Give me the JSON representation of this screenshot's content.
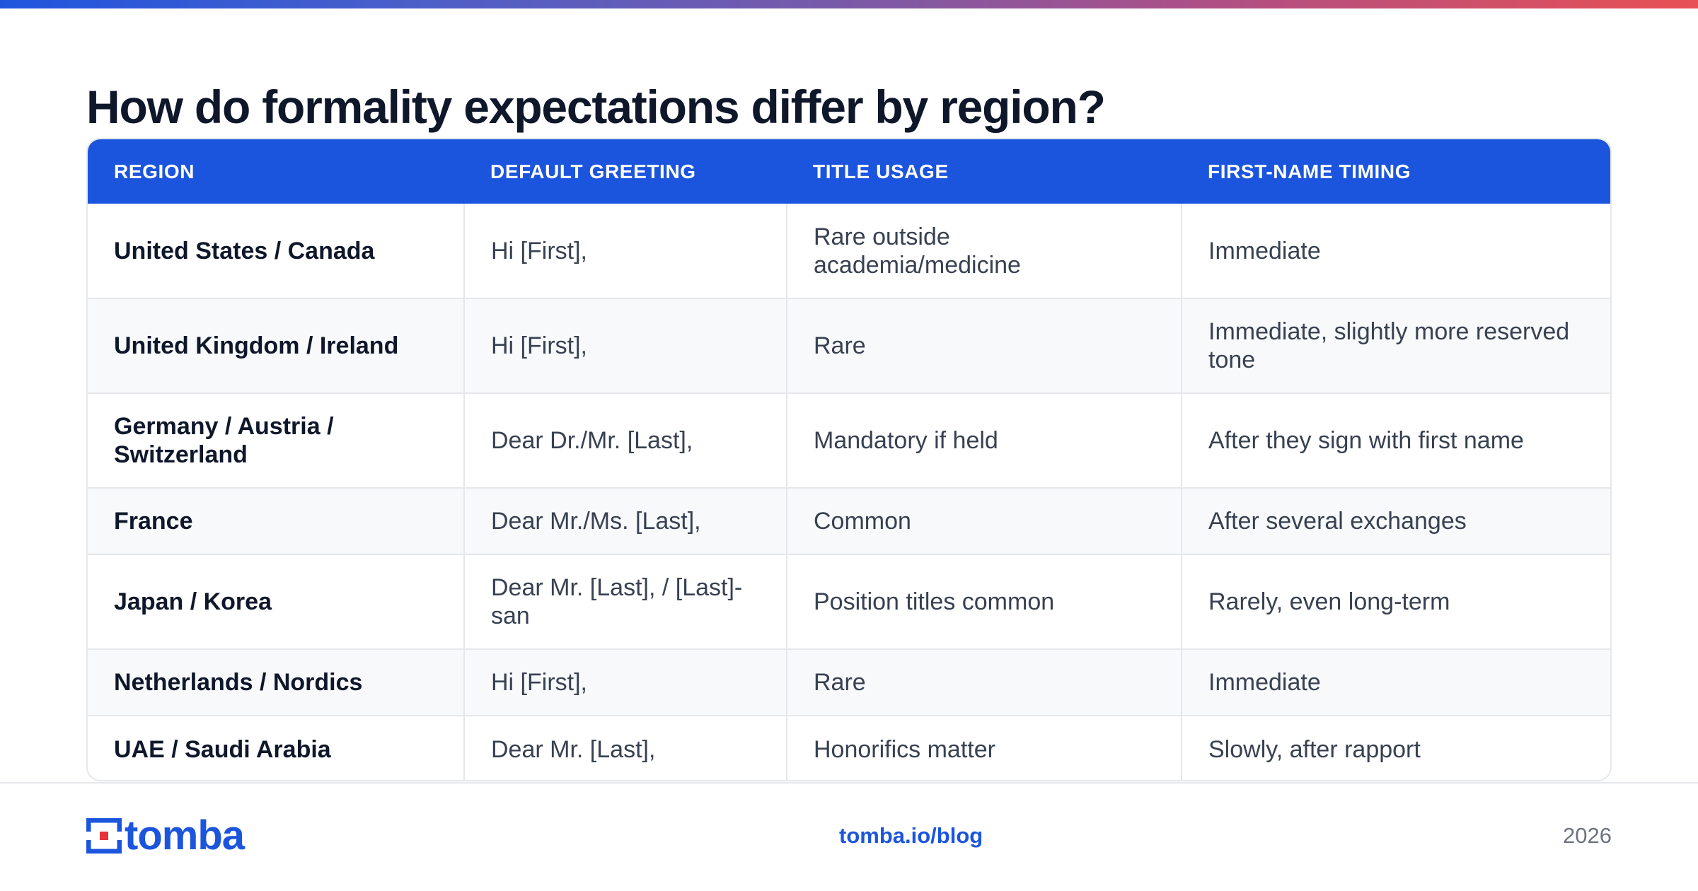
{
  "page": {
    "title": "How do formality expectations differ by region?"
  },
  "table": {
    "headers": [
      "REGION",
      "DEFAULT GREETING",
      "TITLE USAGE",
      "FIRST-NAME TIMING"
    ],
    "rows": [
      [
        "United States / Canada",
        "Hi [First],",
        "Rare outside academia/medicine",
        "Immediate"
      ],
      [
        "United Kingdom / Ireland",
        "Hi [First],",
        "Rare",
        "Immediate, slightly more reserved tone"
      ],
      [
        "Germany / Austria / Switzerland",
        "Dear Dr./Mr. [Last],",
        "Mandatory if held",
        "After they sign with first name"
      ],
      [
        "France",
        "Dear Mr./Ms. [Last],",
        "Common",
        "After several exchanges"
      ],
      [
        "Japan / Korea",
        "Dear Mr. [Last], / [Last]-san",
        "Position titles common",
        "Rarely, even long-term"
      ],
      [
        "Netherlands / Nordics",
        "Hi [First],",
        "Rare",
        "Immediate"
      ],
      [
        "UAE / Saudi Arabia",
        "Dear Mr. [Last],",
        "Honorifics matter",
        "Slowly, after rapport"
      ]
    ]
  },
  "footer": {
    "logo_text": "tomba",
    "logo_icon": "tomba-logo-icon",
    "link": "tomba.io/blog",
    "year": "2026"
  },
  "colors": {
    "accent": "#1c55dd",
    "logo_red": "#e8333a",
    "gradient_start": "#1f55de",
    "gradient_end": "#e85053"
  }
}
